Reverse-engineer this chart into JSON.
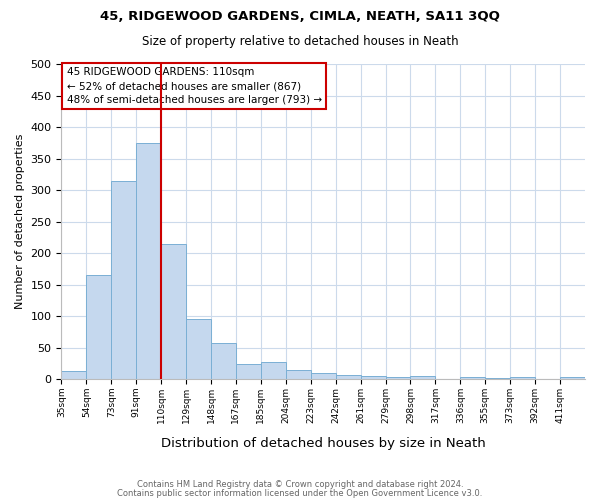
{
  "title1": "45, RIDGEWOOD GARDENS, CIMLA, NEATH, SA11 3QQ",
  "title2": "Size of property relative to detached houses in Neath",
  "xlabel": "Distribution of detached houses by size in Neath",
  "ylabel": "Number of detached properties",
  "bin_labels": [
    "35sqm",
    "54sqm",
    "73sqm",
    "91sqm",
    "110sqm",
    "129sqm",
    "148sqm",
    "167sqm",
    "185sqm",
    "204sqm",
    "223sqm",
    "242sqm",
    "261sqm",
    "279sqm",
    "298sqm",
    "317sqm",
    "336sqm",
    "355sqm",
    "373sqm",
    "392sqm",
    "411sqm"
  ],
  "bar_heights": [
    13,
    165,
    315,
    375,
    215,
    95,
    57,
    24,
    27,
    14,
    10,
    7,
    5,
    3,
    5,
    0,
    4,
    1,
    4,
    0,
    4
  ],
  "bar_color": "#c5d8ee",
  "bar_edge_color": "#7aafd4",
  "red_line_x": 4,
  "annotation_text": "45 RIDGEWOOD GARDENS: 110sqm\n← 52% of detached houses are smaller (867)\n48% of semi-detached houses are larger (793) →",
  "annotation_box_color": "#ffffff",
  "annotation_border_color": "#cc0000",
  "footer1": "Contains HM Land Registry data © Crown copyright and database right 2024.",
  "footer2": "Contains public sector information licensed under the Open Government Licence v3.0.",
  "ylim": [
    0,
    500
  ],
  "yticks": [
    0,
    50,
    100,
    150,
    200,
    250,
    300,
    350,
    400,
    450,
    500
  ],
  "bg_color": "#ffffff",
  "grid_color": "#ccdaeb"
}
